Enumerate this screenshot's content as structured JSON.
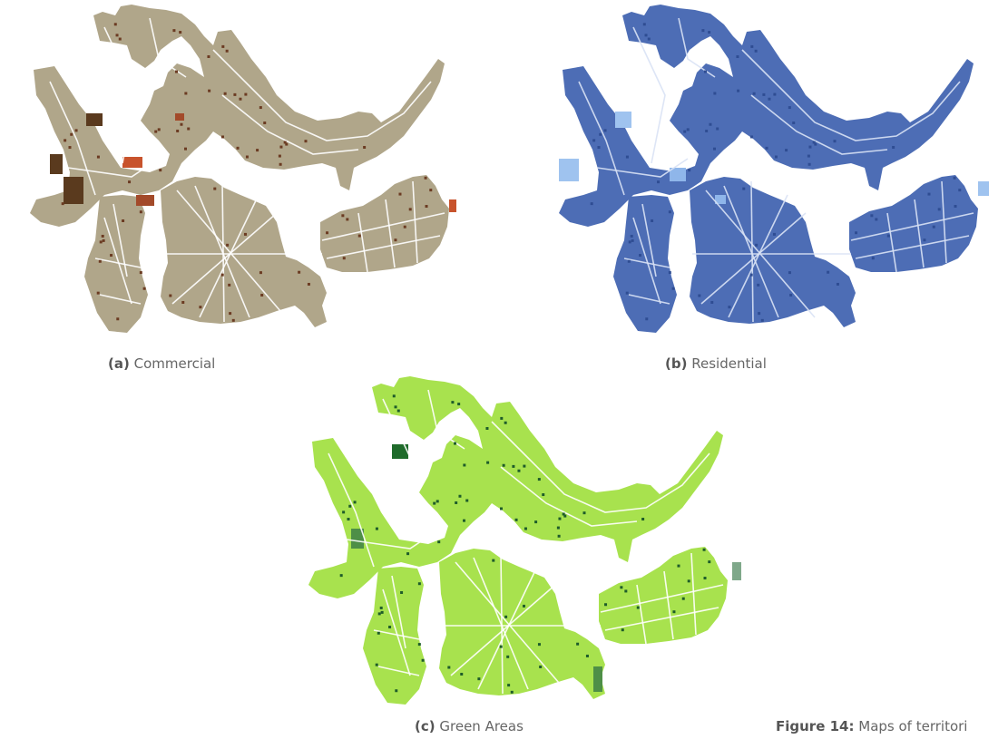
{
  "panels": [
    {
      "id": "commercial",
      "tag": "(a)",
      "label": "Commercial",
      "fill": "#b0a68a",
      "street": "#ffffff",
      "highlights": [
        "#5a3a1e",
        "#a34a2a",
        "#c8532c"
      ],
      "dot": "#6b3b22"
    },
    {
      "id": "residential",
      "tag": "(b)",
      "label": "Residential",
      "fill": "#4d6db5",
      "street": "#d9e2f5",
      "highlights": [
        "#9fc3ef",
        "#8fb6ea"
      ],
      "dot": "#2f4d93"
    },
    {
      "id": "green",
      "tag": "(c)",
      "label": "Green Areas",
      "fill": "#a8e24e",
      "street": "#ffffff",
      "highlights": [
        "#1f6b2b",
        "#4e8f47",
        "#7fa88a"
      ],
      "dot": "#1e5c2a"
    }
  ],
  "figure": {
    "tag": "Figure 14:",
    "text": "Maps of territori"
  }
}
